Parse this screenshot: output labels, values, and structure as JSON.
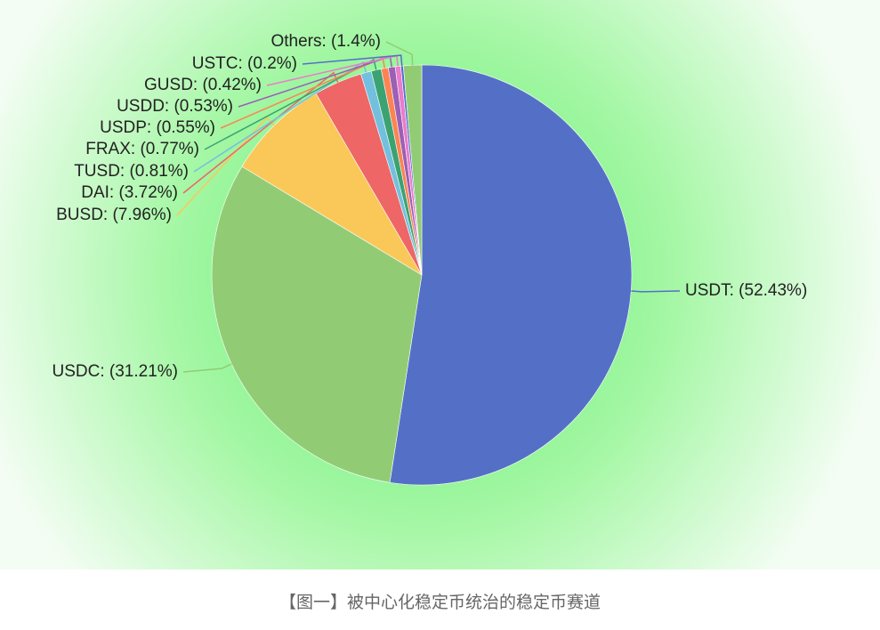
{
  "chart_data": {
    "type": "pie",
    "values": [
      52.43,
      31.21,
      7.96,
      3.72,
      0.81,
      0.77,
      0.55,
      0.53,
      0.42,
      0.2,
      1.4
    ],
    "value_labels": [
      "USDT: (52.43%)",
      "USDC: (31.21%)",
      "BUSD: (7.96%)",
      "DAI: (3.72%)",
      "TUSD: (0.81%)",
      "FRAX: (0.77%)",
      "USDP: (0.55%)",
      "USDD: (0.53%)",
      "GUSD: (0.42%)",
      "USTC: (0.2%)",
      "Others: (1.4%)"
    ],
    "colors": [
      "#5470c6",
      "#91cc75",
      "#fac858",
      "#ee6666",
      "#73c0de",
      "#3ba272",
      "#fc8452",
      "#9a60b4",
      "#ea7ccc",
      "#5470c6",
      "#91cc75"
    ]
  },
  "caption": "【图一】被中心化稳定币统治的稳定币赛道"
}
